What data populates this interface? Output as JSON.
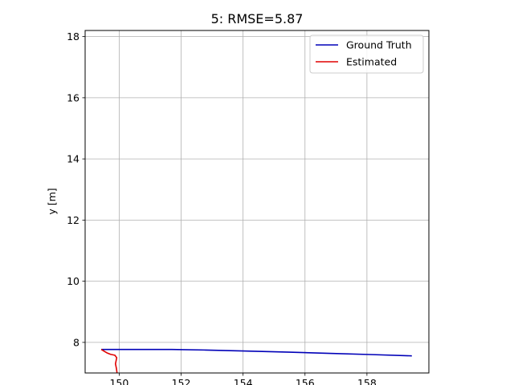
{
  "chart_data": {
    "type": "line",
    "title": "5: RMSE=5.87",
    "xlabel": "",
    "ylabel": "y [m]",
    "xlim": [
      148.9,
      160.0
    ],
    "ylim": [
      7.0,
      18.2
    ],
    "xticks": [
      150,
      152,
      154,
      156,
      158
    ],
    "yticks": [
      8,
      10,
      12,
      14,
      16,
      18
    ],
    "grid": true,
    "legend_position": "upper right",
    "series": [
      {
        "name": "Ground Truth",
        "color": "#0000b8",
        "x": [
          149.42,
          150.5,
          151.7,
          152.8,
          154.0,
          155.5,
          156.8,
          158.2,
          159.45
        ],
        "y": [
          7.77,
          7.77,
          7.77,
          7.75,
          7.72,
          7.68,
          7.64,
          7.6,
          7.56
        ]
      },
      {
        "name": "Estimated",
        "color": "#e00000",
        "x": [
          149.42,
          149.5,
          149.6,
          149.72,
          149.86,
          149.92,
          149.9,
          149.88,
          149.91,
          149.93
        ],
        "y": [
          7.77,
          7.72,
          7.66,
          7.61,
          7.58,
          7.5,
          7.4,
          7.3,
          7.15,
          7.0
        ]
      }
    ]
  }
}
